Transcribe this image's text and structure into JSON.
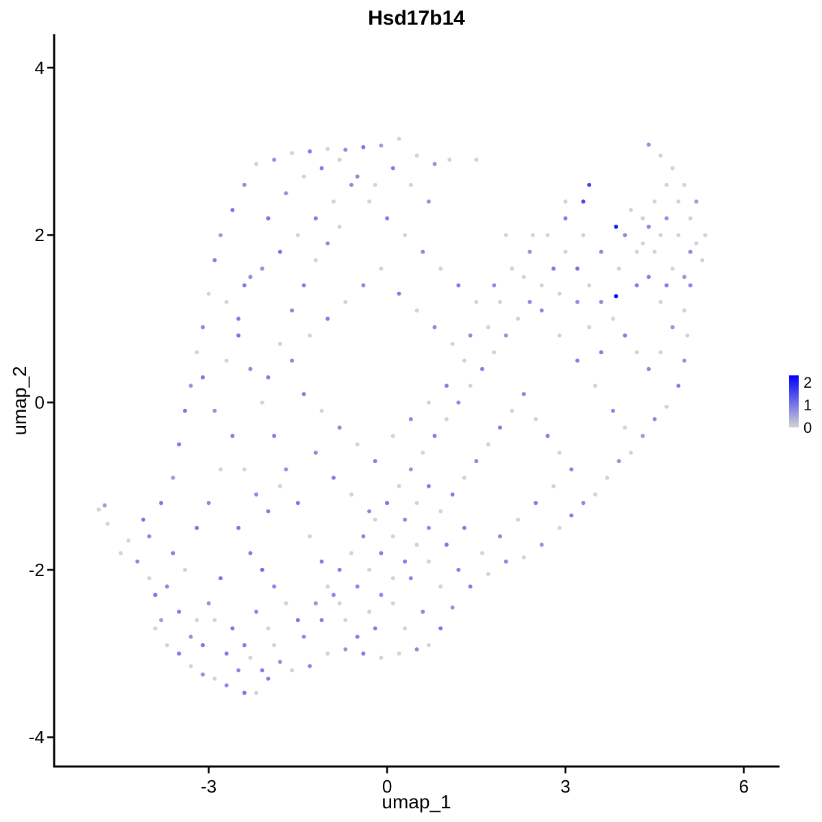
{
  "chart_data": {
    "type": "scatter",
    "title": "Hsd17b14",
    "xlabel": "umap_1",
    "ylabel": "umap_2",
    "xlim": [
      -5.6,
      6.6
    ],
    "ylim": [
      -4.35,
      4.4
    ],
    "x_ticks": [
      -3,
      0,
      3,
      6
    ],
    "y_ticks": [
      -4,
      -2,
      0,
      2,
      4
    ],
    "x_tick_labels": [
      "-3",
      "0",
      "3",
      "6"
    ],
    "y_tick_labels": [
      "-4",
      "-2",
      "0",
      "2",
      "4"
    ],
    "grid": false,
    "legend": {
      "position": "right",
      "scale_min": 0,
      "scale_max": 2.3,
      "ticks": [
        0,
        1,
        2
      ],
      "tick_labels": [
        "0",
        "1",
        "2"
      ],
      "low_color": "#d3d3d3",
      "high_color": "#0000ff"
    },
    "points": [
      [
        -4.75,
        -1.23,
        0.6
      ],
      [
        -4.85,
        -1.28,
        0
      ],
      [
        -4.7,
        -1.45,
        0
      ],
      [
        -4.48,
        -1.8,
        0
      ],
      [
        -4.35,
        -1.65,
        0
      ],
      [
        -4.1,
        -1.4,
        1
      ],
      [
        -4.2,
        -1.9,
        0.8
      ],
      [
        -4.0,
        -2.1,
        0
      ],
      [
        -3.9,
        -2.3,
        1
      ],
      [
        -3.8,
        -2.6,
        0.6
      ],
      [
        -3.7,
        -2.9,
        0
      ],
      [
        -3.5,
        -3.0,
        0.9
      ],
      [
        -3.3,
        -3.15,
        0
      ],
      [
        -3.1,
        -3.25,
        0.7
      ],
      [
        -2.9,
        -3.3,
        0
      ],
      [
        -2.7,
        -3.38,
        0.8
      ],
      [
        -2.4,
        -3.47,
        1
      ],
      [
        -2.2,
        -3.47,
        0
      ],
      [
        -2.0,
        -3.3,
        0.9
      ],
      [
        -1.8,
        -3.1,
        0.7
      ],
      [
        -4.0,
        -1.6,
        0.8
      ],
      [
        -3.8,
        -1.2,
        1
      ],
      [
        -3.6,
        -0.9,
        0.6
      ],
      [
        -3.5,
        -0.5,
        0.9
      ],
      [
        -3.4,
        -0.1,
        1
      ],
      [
        -3.3,
        0.2,
        0.7
      ],
      [
        -3.2,
        0.6,
        0
      ],
      [
        -3.1,
        0.9,
        0.8
      ],
      [
        -3.0,
        1.3,
        0
      ],
      [
        -2.9,
        1.7,
        0.9
      ],
      [
        -2.8,
        2.0,
        0.6
      ],
      [
        -2.6,
        2.3,
        1
      ],
      [
        -2.4,
        2.6,
        0.8
      ],
      [
        -2.2,
        2.85,
        0
      ],
      [
        -1.9,
        2.9,
        0.7
      ],
      [
        -1.6,
        2.98,
        0
      ],
      [
        -1.3,
        3.0,
        0.9
      ],
      [
        -1.0,
        3.03,
        0
      ],
      [
        -0.7,
        3.02,
        0.8
      ],
      [
        -0.4,
        3.05,
        1
      ],
      [
        -0.1,
        3.07,
        0.6
      ],
      [
        0.2,
        3.15,
        0
      ],
      [
        0.5,
        2.95,
        0
      ],
      [
        0.8,
        2.85,
        0.7
      ],
      [
        1.05,
        2.9,
        0
      ],
      [
        1.5,
        2.9,
        0
      ],
      [
        2.45,
        2.0,
        0
      ],
      [
        3.0,
        2.4,
        0
      ],
      [
        3.4,
        2.6,
        1.6
      ],
      [
        4.4,
        3.08,
        0.7
      ],
      [
        4.6,
        2.95,
        0
      ],
      [
        4.8,
        2.8,
        0
      ],
      [
        5.0,
        2.6,
        0
      ],
      [
        5.2,
        2.4,
        0.6
      ],
      [
        5.35,
        2.0,
        0
      ],
      [
        5.3,
        1.7,
        0
      ],
      [
        5.1,
        1.4,
        0.8
      ],
      [
        5.0,
        1.1,
        0
      ],
      [
        5.05,
        0.8,
        0
      ],
      [
        5.0,
        0.5,
        0.7
      ],
      [
        4.9,
        0.2,
        0.9
      ],
      [
        4.7,
        -0.05,
        0
      ],
      [
        4.5,
        -0.2,
        0.8
      ],
      [
        4.3,
        -0.4,
        0.6
      ],
      [
        4.1,
        -0.6,
        0
      ],
      [
        3.9,
        -0.7,
        0.7
      ],
      [
        3.7,
        -0.9,
        0
      ],
      [
        3.5,
        -1.1,
        0
      ],
      [
        3.3,
        -1.2,
        0.8
      ],
      [
        3.1,
        -1.35,
        0.9
      ],
      [
        2.9,
        -1.5,
        0
      ],
      [
        2.6,
        -1.7,
        0.7
      ],
      [
        2.3,
        -1.85,
        0
      ],
      [
        2.0,
        -1.9,
        0.8
      ],
      [
        1.7,
        -2.05,
        0
      ],
      [
        1.4,
        -2.2,
        0.9
      ],
      [
        1.1,
        -2.45,
        0.7
      ],
      [
        0.9,
        -2.7,
        1
      ],
      [
        0.7,
        -2.9,
        0
      ],
      [
        0.5,
        -2.95,
        0.8
      ],
      [
        0.2,
        -3.0,
        0
      ],
      [
        -0.1,
        -3.05,
        0
      ],
      [
        -0.4,
        -3.0,
        0.9
      ],
      [
        -0.7,
        -2.95,
        0.7
      ],
      [
        -1.0,
        -3.0,
        0
      ],
      [
        -1.3,
        -3.15,
        0.8
      ],
      [
        -1.6,
        -3.2,
        0
      ],
      [
        3.85,
        2.1,
        2.0
      ],
      [
        3.85,
        1.27,
        2.3
      ],
      [
        3.3,
        2.4,
        1.5
      ],
      [
        -2.5,
        -1.5,
        1
      ],
      [
        -2.3,
        -1.8,
        0.9
      ],
      [
        -2.1,
        -2.0,
        1.1
      ],
      [
        -1.9,
        -2.2,
        0.8
      ],
      [
        -1.7,
        -2.4,
        0
      ],
      [
        -2.8,
        -2.1,
        1
      ],
      [
        -3.0,
        -2.4,
        0.7
      ],
      [
        -3.2,
        -2.6,
        0
      ],
      [
        -2.6,
        -2.7,
        1
      ],
      [
        -2.4,
        -2.9,
        0.9
      ],
      [
        -2.2,
        -2.5,
        0.8
      ],
      [
        -2.0,
        -2.7,
        0
      ],
      [
        -1.5,
        -2.6,
        1
      ],
      [
        -1.2,
        -2.4,
        0.7
      ],
      [
        -1.0,
        -2.2,
        0
      ],
      [
        -0.8,
        -2.0,
        0.9
      ],
      [
        -0.6,
        -1.8,
        0
      ],
      [
        -0.4,
        -1.6,
        0.8
      ],
      [
        -0.2,
        -1.4,
        0
      ],
      [
        0.0,
        -1.2,
        1
      ],
      [
        0.2,
        -1.0,
        0
      ],
      [
        0.4,
        -0.8,
        0.7
      ],
      [
        0.6,
        -0.6,
        0
      ],
      [
        0.8,
        -0.4,
        0.9
      ],
      [
        1.0,
        -0.2,
        0
      ],
      [
        1.2,
        0.0,
        0.8
      ],
      [
        1.4,
        0.2,
        0
      ],
      [
        1.6,
        0.4,
        0.9
      ],
      [
        1.8,
        0.6,
        0
      ],
      [
        2.0,
        0.8,
        0.7
      ],
      [
        2.2,
        1.0,
        0
      ],
      [
        2.4,
        1.2,
        0.8
      ],
      [
        2.6,
        1.4,
        0
      ],
      [
        2.8,
        1.6,
        0.9
      ],
      [
        3.0,
        1.8,
        0
      ],
      [
        3.2,
        1.6,
        1
      ],
      [
        3.4,
        1.4,
        0
      ],
      [
        3.6,
        1.2,
        0.8
      ],
      [
        3.8,
        1.0,
        0
      ],
      [
        4.0,
        0.8,
        0.9
      ],
      [
        4.2,
        0.6,
        0
      ],
      [
        4.4,
        0.4,
        0.8
      ],
      [
        4.6,
        0.6,
        0
      ],
      [
        4.8,
        0.9,
        0.7
      ],
      [
        4.6,
        1.2,
        0
      ],
      [
        4.4,
        1.5,
        0.9
      ],
      [
        4.2,
        1.8,
        0
      ],
      [
        4.0,
        2.0,
        0.8
      ],
      [
        4.3,
        2.2,
        0
      ],
      [
        4.5,
        2.4,
        0
      ],
      [
        4.7,
        2.2,
        0.7
      ],
      [
        4.9,
        2.0,
        0
      ],
      [
        5.1,
        1.8,
        0.8
      ],
      [
        4.8,
        1.6,
        0
      ],
      [
        4.5,
        1.8,
        0
      ],
      [
        4.2,
        1.4,
        0.9
      ],
      [
        3.9,
        1.6,
        0
      ],
      [
        3.6,
        1.8,
        0.8
      ],
      [
        3.3,
        2.0,
        0
      ],
      [
        3.0,
        2.2,
        0.9
      ],
      [
        2.7,
        2.0,
        0
      ],
      [
        2.4,
        1.8,
        0.7
      ],
      [
        2.1,
        1.6,
        0
      ],
      [
        1.8,
        1.4,
        0.8
      ],
      [
        1.5,
        1.2,
        0
      ],
      [
        1.2,
        1.4,
        0.9
      ],
      [
        0.9,
        1.6,
        0
      ],
      [
        0.6,
        1.8,
        0.8
      ],
      [
        0.3,
        2.0,
        0
      ],
      [
        0.0,
        2.2,
        0.9
      ],
      [
        -0.3,
        2.4,
        0
      ],
      [
        -0.6,
        2.6,
        0.8
      ],
      [
        -0.9,
        2.4,
        0
      ],
      [
        -1.2,
        2.2,
        0.9
      ],
      [
        -1.5,
        2.0,
        0
      ],
      [
        -1.8,
        1.8,
        1
      ],
      [
        -2.1,
        1.6,
        0.7
      ],
      [
        -2.4,
        1.4,
        0.9
      ],
      [
        -2.7,
        1.2,
        0
      ],
      [
        -2.5,
        0.8,
        1
      ],
      [
        -2.3,
        0.4,
        0.8
      ],
      [
        -2.1,
        0.0,
        0
      ],
      [
        -1.9,
        -0.4,
        0.9
      ],
      [
        -1.7,
        -0.8,
        0.7
      ],
      [
        -1.5,
        -1.2,
        1
      ],
      [
        -1.3,
        -1.6,
        0
      ],
      [
        -1.1,
        -1.9,
        0.9
      ],
      [
        -0.9,
        -2.3,
        0.8
      ],
      [
        -0.7,
        -2.6,
        0
      ],
      [
        -0.5,
        -2.8,
        0.9
      ],
      [
        -0.3,
        -2.5,
        0
      ],
      [
        -0.1,
        -2.3,
        0.8
      ],
      [
        0.1,
        -2.1,
        0
      ],
      [
        0.3,
        -1.9,
        0.9
      ],
      [
        0.5,
        -1.7,
        0
      ],
      [
        0.7,
        -1.5,
        0.8
      ],
      [
        0.9,
        -1.3,
        0
      ],
      [
        1.1,
        -1.1,
        0.9
      ],
      [
        1.3,
        -0.9,
        0
      ],
      [
        1.5,
        -0.7,
        0.8
      ],
      [
        1.7,
        -0.5,
        0
      ],
      [
        1.9,
        -0.3,
        0.9
      ],
      [
        2.1,
        -0.1,
        0
      ],
      [
        2.3,
        0.1,
        0.8
      ],
      [
        2.5,
        -0.2,
        0
      ],
      [
        2.7,
        -0.4,
        0.9
      ],
      [
        2.9,
        -0.6,
        0
      ],
      [
        3.1,
        -0.8,
        0.8
      ],
      [
        2.8,
        -1.0,
        0
      ],
      [
        2.5,
        -1.2,
        0.9
      ],
      [
        2.2,
        -1.4,
        0
      ],
      [
        1.9,
        -1.6,
        0.8
      ],
      [
        1.6,
        -1.8,
        0
      ],
      [
        1.3,
        -1.5,
        0.9
      ],
      [
        1.0,
        -1.7,
        1
      ],
      [
        0.7,
        -1.9,
        0
      ],
      [
        0.4,
        -2.1,
        0.8
      ],
      [
        0.1,
        -2.4,
        0
      ],
      [
        -0.2,
        -2.7,
        0.9
      ],
      [
        0.3,
        -2.7,
        0
      ],
      [
        0.6,
        -2.5,
        0.8
      ],
      [
        0.9,
        -2.2,
        0
      ],
      [
        1.2,
        -2.0,
        0.9
      ],
      [
        -3.6,
        -1.8,
        0.9
      ],
      [
        -3.4,
        -2.0,
        0
      ],
      [
        -3.2,
        -1.5,
        1
      ],
      [
        -3.0,
        -1.2,
        0.8
      ],
      [
        -2.8,
        -0.8,
        0
      ],
      [
        -2.6,
        -0.4,
        0.9
      ],
      [
        -2.9,
        -0.1,
        0.7
      ],
      [
        -3.1,
        0.3,
        1
      ],
      [
        -2.7,
        0.5,
        0
      ],
      [
        -2.5,
        1.0,
        0.9
      ],
      [
        -2.3,
        1.5,
        0.8
      ],
      [
        -2.0,
        2.2,
        1
      ],
      [
        -1.7,
        2.5,
        0.7
      ],
      [
        -1.4,
        2.7,
        0
      ],
      [
        -1.1,
        2.8,
        0.9
      ],
      [
        -0.8,
        2.9,
        0
      ],
      [
        -0.5,
        2.7,
        0.8
      ],
      [
        -0.2,
        2.6,
        0
      ],
      [
        0.1,
        2.8,
        0.9
      ],
      [
        0.4,
        2.6,
        0
      ],
      [
        0.7,
        2.4,
        0.7
      ],
      [
        -3.7,
        -2.2,
        0.8
      ],
      [
        -3.9,
        -2.7,
        0
      ],
      [
        -3.5,
        -2.5,
        0.9
      ],
      [
        -3.3,
        -2.8,
        0.7
      ],
      [
        -3.1,
        -2.9,
        1
      ],
      [
        -2.9,
        -2.6,
        0
      ],
      [
        -2.7,
        -3.0,
        0.9
      ],
      [
        -2.5,
        -3.2,
        0.8
      ],
      [
        -2.3,
        -3.05,
        0
      ],
      [
        -2.1,
        -3.2,
        0.9
      ],
      [
        -1.9,
        -2.9,
        0
      ],
      [
        -1.4,
        -2.8,
        0.8
      ],
      [
        -1.1,
        -2.6,
        0.9
      ],
      [
        -0.8,
        -2.4,
        0
      ],
      [
        -0.5,
        -2.2,
        0.8
      ],
      [
        -0.3,
        -2.0,
        0
      ],
      [
        -0.1,
        -1.8,
        0.9
      ],
      [
        0.1,
        -1.6,
        0
      ],
      [
        0.3,
        -1.4,
        0.8
      ],
      [
        0.5,
        -1.2,
        0
      ],
      [
        0.7,
        -1.0,
        0.9
      ],
      [
        -1.6,
        0.5,
        0.8
      ],
      [
        -1.3,
        0.8,
        0
      ],
      [
        -1.0,
        1.0,
        0.9
      ],
      [
        -0.7,
        1.2,
        0
      ],
      [
        -0.4,
        1.4,
        0.8
      ],
      [
        -0.1,
        1.6,
        0
      ],
      [
        0.2,
        1.3,
        0.9
      ],
      [
        0.5,
        1.1,
        0
      ],
      [
        0.8,
        0.9,
        0.8
      ],
      [
        1.1,
        0.7,
        0
      ],
      [
        -1.4,
        0.1,
        0.9
      ],
      [
        -1.1,
        -0.1,
        0
      ],
      [
        -0.8,
        -0.3,
        0.8
      ],
      [
        -0.5,
        -0.5,
        0
      ],
      [
        -0.2,
        -0.7,
        0.9
      ],
      [
        0.1,
        -0.4,
        0
      ],
      [
        0.4,
        -0.2,
        0.8
      ],
      [
        0.7,
        0.0,
        0
      ],
      [
        1.0,
        0.2,
        0.9
      ],
      [
        1.3,
        0.5,
        0
      ],
      [
        -1.2,
        -0.6,
        0.8
      ],
      [
        -0.9,
        -0.9,
        0.9
      ],
      [
        -0.6,
        -1.1,
        0
      ],
      [
        -0.3,
        -1.3,
        0.8
      ],
      [
        -1.8,
        -1.0,
        0
      ],
      [
        -2.0,
        -1.3,
        0.9
      ],
      [
        -2.2,
        -1.1,
        0.8
      ],
      [
        -2.4,
        -0.8,
        0
      ],
      [
        -2.0,
        0.3,
        0.9
      ],
      [
        -1.8,
        0.7,
        0
      ],
      [
        -1.6,
        1.1,
        0.8
      ],
      [
        -1.4,
        1.4,
        0.9
      ],
      [
        -1.2,
        1.7,
        0
      ],
      [
        -1.0,
        1.9,
        0.8
      ],
      [
        -0.8,
        2.1,
        0
      ],
      [
        2.0,
        2.0,
        0
      ],
      [
        2.3,
        1.5,
        0
      ],
      [
        2.6,
        1.1,
        0.8
      ],
      [
        2.9,
        0.8,
        0
      ],
      [
        3.2,
        0.5,
        0.9
      ],
      [
        3.5,
        0.2,
        0
      ],
      [
        3.8,
        -0.1,
        0.8
      ],
      [
        4.0,
        -0.3,
        0
      ],
      [
        3.6,
        0.6,
        0.9
      ],
      [
        3.4,
        0.9,
        0
      ],
      [
        3.2,
        1.2,
        0.8
      ],
      [
        2.9,
        1.3,
        0
      ],
      [
        1.7,
        0.9,
        0
      ],
      [
        1.9,
        1.2,
        0
      ],
      [
        1.4,
        0.8,
        0.8
      ],
      [
        4.7,
        2.6,
        0
      ],
      [
        4.9,
        2.4,
        0
      ],
      [
        5.1,
        2.2,
        0
      ],
      [
        5.2,
        1.9,
        0
      ],
      [
        5.0,
        1.5,
        0.7
      ],
      [
        4.6,
        2.0,
        0
      ],
      [
        4.4,
        2.1,
        0.8
      ],
      [
        4.1,
        2.3,
        0
      ],
      [
        4.3,
        1.9,
        0
      ],
      [
        4.7,
        1.4,
        0.9
      ]
    ]
  }
}
